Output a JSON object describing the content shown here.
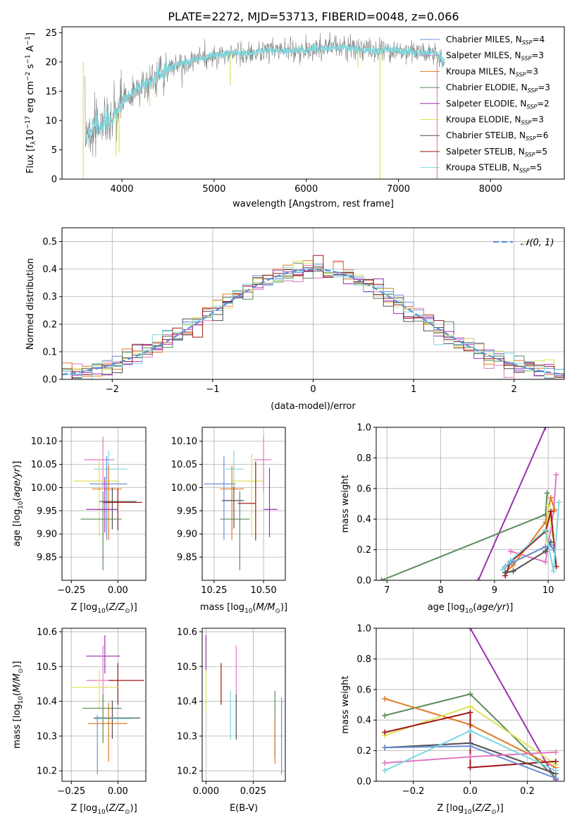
{
  "figure": {
    "title": "PLATE=2272, MJD=53713, FIBERID=0048, z=0.066"
  },
  "colors": {
    "chabrier_miles": "#6a8fd8",
    "salpeter_miles": "#e377c2",
    "kroupa_miles": "#e07b25",
    "chabrier_elodie": "#5a8a5a",
    "salpeter_elodie": "#9b30b0",
    "kroupa_elodie": "#dde35a",
    "chabrier_stelib": "#505050",
    "salpeter_stelib": "#a01818",
    "kroupa_stelib": "#7dd8e0",
    "data": "#808080",
    "normal": "#5b8fd8",
    "grid": "#b0b0b0"
  },
  "chart_data": [
    {
      "type": "line",
      "id": "spectrum",
      "xlabel": "wavelength [Angstrom, rest frame]",
      "ylabel": "Flux [f",
      "xlim": [
        3350,
        8800
      ],
      "ylim": [
        0,
        26
      ],
      "xticks": [
        4000,
        5000,
        6000,
        7000,
        8000
      ],
      "yticks": [
        0,
        5,
        10,
        15,
        20,
        25
      ],
      "grid": false,
      "legend": "top-right",
      "series_labels": [
        {
          "imf": "Chabrier",
          "lib": "MILES",
          "n": "4",
          "color_key": "chabrier_miles"
        },
        {
          "imf": "Salpeter",
          "lib": "MILES",
          "n": "3",
          "color_key": "salpeter_miles"
        },
        {
          "imf": "Kroupa",
          "lib": "MILES",
          "n": "3",
          "color_key": "kroupa_miles"
        },
        {
          "imf": "Chabrier",
          "lib": "ELODIE",
          "n": "3",
          "color_key": "chabrier_elodie"
        },
        {
          "imf": "Salpeter",
          "lib": "ELODIE",
          "n": "2",
          "color_key": "salpeter_elodie"
        },
        {
          "imf": "Kroupa",
          "lib": "ELODIE",
          "n": "3",
          "color_key": "kroupa_elodie"
        },
        {
          "imf": "Chabrier",
          "lib": "STELIB",
          "n": "6",
          "color_key": "chabrier_stelib"
        },
        {
          "imf": "Salpeter",
          "lib": "STELIB",
          "n": "5",
          "color_key": "salpeter_stelib"
        },
        {
          "imf": "Kroupa",
          "lib": "STELIB",
          "n": "5",
          "color_key": "kroupa_stelib"
        }
      ],
      "continuum": [
        [
          3600,
          7.5
        ],
        [
          3700,
          9
        ],
        [
          3800,
          9.5
        ],
        [
          3900,
          10
        ],
        [
          4000,
          13
        ],
        [
          4100,
          14.5
        ],
        [
          4200,
          16
        ],
        [
          4300,
          16.5
        ],
        [
          4400,
          18
        ],
        [
          4500,
          19
        ],
        [
          4600,
          19.5
        ],
        [
          4800,
          20.5
        ],
        [
          5000,
          21
        ],
        [
          5200,
          21.5
        ],
        [
          5400,
          21.5
        ],
        [
          5600,
          22
        ],
        [
          5800,
          22
        ],
        [
          6000,
          22
        ],
        [
          6200,
          22.5
        ],
        [
          6400,
          22.5
        ],
        [
          6600,
          22
        ],
        [
          6800,
          22
        ],
        [
          7000,
          22
        ],
        [
          7200,
          21.5
        ],
        [
          7400,
          21.5
        ],
        [
          7500,
          20
        ]
      ],
      "features": [
        {
          "x": 3580,
          "y": 0.2
        },
        {
          "x": 3935,
          "y": 4
        },
        {
          "x": 3970,
          "y": 4.5
        },
        {
          "x": 4300,
          "y": 12.5
        },
        {
          "x": 5175,
          "y": 16
        },
        {
          "x": 6560,
          "y": 19
        },
        {
          "x": 6800,
          "y": 0
        },
        {
          "x": 7420,
          "y": 0
        }
      ]
    },
    {
      "type": "bar",
      "id": "residual-histogram",
      "xlabel": "(data-model)/error",
      "ylabel": "Normed distribution",
      "xlim": [
        -2.5,
        2.5
      ],
      "ylim": [
        0,
        0.55
      ],
      "xticks": [
        -2,
        -1,
        0,
        1,
        2
      ],
      "yticks": [
        0.0,
        0.1,
        0.2,
        0.3,
        0.4,
        0.5
      ],
      "grid": true,
      "legend": "top-right",
      "legend_label": "𝒩(0, 1)",
      "bin_width": 0.1,
      "normal": {
        "mean": 0,
        "sigma": 1
      }
    },
    {
      "type": "scatter",
      "id": "age-vs-metallicity",
      "xlabel": "Z [log",
      "ylabel": "age  [log",
      "xlim": [
        -0.3,
        0.15
      ],
      "ylim": [
        9.8,
        10.13
      ],
      "xticks": [
        -0.25,
        0.0
      ],
      "yticks": [
        9.85,
        9.9,
        9.95,
        10.0,
        10.05,
        10.1
      ],
      "grid": true,
      "points": [
        {
          "c": "salpeter_miles",
          "x": -0.08,
          "y": 10.06,
          "xerr": [
            0.1,
            0.06
          ],
          "yerr": [
            0.06,
            0.05
          ]
        },
        {
          "c": "kroupa_stelib",
          "x": -0.05,
          "y": 10.04,
          "xerr": [
            0.08,
            0.1
          ],
          "yerr": [
            0.05,
            0.04
          ]
        },
        {
          "c": "chabrier_miles",
          "x": -0.06,
          "y": 10.008,
          "xerr": [
            0.09,
            0.11
          ],
          "yerr": [
            0.12,
            0.06
          ]
        },
        {
          "c": "kroupa_elodie",
          "x": -0.1,
          "y": 10.014,
          "xerr": [
            0.14,
            0.11
          ],
          "yerr": [
            0.12,
            0.05
          ]
        },
        {
          "c": "kroupa_miles",
          "x": -0.05,
          "y": 9.997,
          "xerr": [
            0.09,
            0.07
          ],
          "yerr": [
            0.11,
            0.05
          ]
        },
        {
          "c": "chabrier_stelib",
          "x": -0.03,
          "y": 9.97,
          "xerr": [
            0.07,
            0.13
          ],
          "yerr": [
            0.06,
            0.03
          ]
        },
        {
          "c": "salpeter_stelib",
          "x": 0.0,
          "y": 9.968,
          "xerr": [
            0.08,
            0.13
          ],
          "yerr": [
            0.06,
            0.03
          ]
        },
        {
          "c": "salpeter_elodie",
          "x": -0.07,
          "y": 9.953,
          "xerr": [
            0.1,
            0.07
          ],
          "yerr": [
            0.05,
            0.07
          ]
        },
        {
          "c": "chabrier_elodie",
          "x": -0.08,
          "y": 9.932,
          "xerr": [
            0.12,
            0.1
          ],
          "yerr": [
            0.11,
            0.06
          ]
        }
      ]
    },
    {
      "type": "scatter",
      "id": "age-vs-mass",
      "xlabel": "mass [log",
      "ylabel": "",
      "xlim": [
        10.19,
        10.61
      ],
      "ylim": [
        9.8,
        10.13
      ],
      "xticks": [
        10.25,
        10.5
      ],
      "yticks": [
        9.85,
        9.9,
        9.95,
        10.0,
        10.05,
        10.1
      ],
      "grid": true,
      "points": [
        {
          "c": "salpeter_miles",
          "x": 10.5,
          "y": 10.06,
          "xerr": [
            0.05,
            0.04
          ],
          "yerr": [
            0.07,
            0.05
          ]
        },
        {
          "c": "kroupa_stelib",
          "x": 10.35,
          "y": 10.04,
          "xerr": [
            0.04,
            0.05
          ],
          "yerr": [
            0.05,
            0.04
          ]
        },
        {
          "c": "chabrier_miles",
          "x": 10.3,
          "y": 10.008,
          "xerr": [
            0.1,
            0.06
          ],
          "yerr": [
            0.12,
            0.06
          ]
        },
        {
          "c": "kroupa_elodie",
          "x": 10.44,
          "y": 10.014,
          "xerr": [
            0.1,
            0.06
          ],
          "yerr": [
            0.12,
            0.06
          ]
        },
        {
          "c": "kroupa_miles",
          "x": 10.34,
          "y": 9.997,
          "xerr": [
            0.06,
            0.06
          ],
          "yerr": [
            0.11,
            0.05
          ]
        },
        {
          "c": "chabrier_stelib",
          "x": 10.35,
          "y": 9.972,
          "xerr": [
            0.06,
            0.05
          ],
          "yerr": [
            0.06,
            0.03
          ]
        },
        {
          "c": "salpeter_stelib",
          "x": 10.46,
          "y": 9.966,
          "xerr": [
            0.09,
            0.0
          ],
          "yerr": [
            0.08,
            0.09
          ]
        },
        {
          "c": "salpeter_elodie",
          "x": 10.53,
          "y": 9.953,
          "xerr": [
            0.03,
            0.04
          ],
          "yerr": [
            0.06,
            0.09
          ]
        },
        {
          "c": "chabrier_elodie",
          "x": 10.38,
          "y": 9.932,
          "xerr": [
            0.1,
            0.05
          ],
          "yerr": [
            0.11,
            0.06
          ]
        }
      ]
    },
    {
      "type": "line",
      "id": "weight-vs-age",
      "xlabel": "age  [log",
      "ylabel": "mass weight",
      "xlim": [
        6.8,
        10.3
      ],
      "ylim": [
        0,
        1
      ],
      "xticks": [
        7,
        8,
        9,
        10
      ],
      "yticks": [
        0.0,
        0.2,
        0.4,
        0.6,
        0.8,
        1.0
      ],
      "grid": true,
      "series": [
        {
          "c": "salpeter_elodie",
          "x": [
            8.7,
            9.95
          ],
          "y": [
            0.0,
            1.0
          ]
        },
        {
          "c": "chabrier_elodie",
          "x": [
            6.9,
            9.95,
            9.98
          ],
          "y": [
            0.0,
            0.43,
            0.57
          ]
        },
        {
          "c": "salpeter_miles",
          "x": [
            9.3,
            9.95,
            10.1,
            10.15
          ],
          "y": [
            0.19,
            0.12,
            0.45,
            0.69
          ]
        },
        {
          "c": "kroupa_miles",
          "x": [
            9.2,
            9.35,
            9.95,
            10.05,
            10.12
          ],
          "y": [
            0.05,
            0.1,
            0.38,
            0.54,
            0.46
          ]
        },
        {
          "c": "kroupa_elodie",
          "x": [
            9.25,
            9.95,
            10.0,
            10.08
          ],
          "y": [
            0.1,
            0.22,
            0.49,
            0.3
          ]
        },
        {
          "c": "salpeter_stelib",
          "x": [
            9.2,
            9.3,
            9.95,
            10.05,
            10.15
          ],
          "y": [
            0.03,
            0.12,
            0.32,
            0.45,
            0.09
          ]
        },
        {
          "c": "chabrier_stelib",
          "x": [
            9.2,
            9.35,
            9.95,
            10.05
          ],
          "y": [
            0.05,
            0.06,
            0.19,
            0.25
          ]
        },
        {
          "c": "chabrier_miles",
          "x": [
            9.2,
            9.35,
            9.95,
            10.05,
            10.1
          ],
          "y": [
            0.09,
            0.12,
            0.22,
            0.23,
            0.2
          ]
        },
        {
          "c": "kroupa_stelib",
          "x": [
            9.15,
            9.3,
            9.95,
            10.1,
            10.2
          ],
          "y": [
            0.07,
            0.13,
            0.33,
            0.06,
            0.51
          ]
        }
      ]
    },
    {
      "type": "scatter",
      "id": "mass-vs-metallicity",
      "xlabel": "Z [log",
      "ylabel": "mass [log",
      "xlim": [
        -0.3,
        0.15
      ],
      "ylim": [
        10.17,
        10.61
      ],
      "xticks": [
        -0.25,
        0.0
      ],
      "yticks": [
        10.2,
        10.3,
        10.4,
        10.5,
        10.6
      ],
      "grid": true,
      "points": [
        {
          "c": "salpeter_elodie",
          "x": -0.07,
          "y": 10.53,
          "xerr": [
            0.1,
            0.08
          ],
          "yerr": [
            0.05,
            0.06
          ]
        },
        {
          "c": "salpeter_miles",
          "x": -0.08,
          "y": 10.46,
          "xerr": [
            0.09,
            0.06
          ],
          "yerr": [
            0.06,
            0.1
          ]
        },
        {
          "c": "salpeter_stelib",
          "x": 0.0,
          "y": 10.46,
          "xerr": [
            0.05,
            0.14
          ],
          "yerr": [
            0.07,
            0.05
          ]
        },
        {
          "c": "kroupa_elodie",
          "x": -0.1,
          "y": 10.44,
          "xerr": [
            0.15,
            0.1
          ],
          "yerr": [
            0.06,
            0.05
          ]
        },
        {
          "c": "chabrier_elodie",
          "x": -0.08,
          "y": 10.38,
          "xerr": [
            0.11,
            0.1
          ],
          "yerr": [
            0.1,
            0.04
          ]
        },
        {
          "c": "chabrier_stelib",
          "x": -0.03,
          "y": 10.352,
          "xerr": [
            0.1,
            0.15
          ],
          "yerr": [
            0.06,
            0.05
          ]
        },
        {
          "c": "kroupa_stelib",
          "x": -0.05,
          "y": 10.35,
          "xerr": [
            0.08,
            0.12
          ],
          "yerr": [
            0.06,
            0.04
          ]
        },
        {
          "c": "kroupa_miles",
          "x": -0.05,
          "y": 10.336,
          "xerr": [
            0.11,
            0.1
          ],
          "yerr": [
            0.11,
            0.06
          ]
        },
        {
          "c": "chabrier_miles",
          "x": -0.11,
          "y": 10.3,
          "xerr": [
            0.0,
            0.0
          ],
          "yerr": [
            0.11,
            0.06
          ]
        }
      ]
    },
    {
      "type": "scatter",
      "id": "mass-vs-ebv",
      "xlabel": "E(B-V)",
      "ylabel": "",
      "xlim": [
        -0.002,
        0.042
      ],
      "ylim": [
        10.17,
        10.61
      ],
      "xticks": [
        0.0,
        0.025
      ],
      "yticks": [
        10.2,
        10.3,
        10.4,
        10.5,
        10.6
      ],
      "grid": true,
      "points": [
        {
          "c": "salpeter_elodie",
          "x": 0.0,
          "y": 10.53,
          "xerr": [
            0,
            0
          ],
          "yerr": [
            0.04,
            0.06
          ]
        },
        {
          "c": "kroupa_elodie",
          "x": 0.0,
          "y": 10.44,
          "xerr": [
            0,
            0
          ],
          "yerr": [
            0.07,
            0.05
          ]
        },
        {
          "c": "salpeter_stelib",
          "x": 0.008,
          "y": 10.45,
          "xerr": [
            0,
            0
          ],
          "yerr": [
            0.06,
            0.06
          ]
        },
        {
          "c": "kroupa_stelib",
          "x": 0.013,
          "y": 10.36,
          "xerr": [
            0,
            0
          ],
          "yerr": [
            0.07,
            0.07
          ]
        },
        {
          "c": "salpeter_miles",
          "x": 0.016,
          "y": 10.48,
          "xerr": [
            0,
            0
          ],
          "yerr": [
            0.06,
            0.08
          ]
        },
        {
          "c": "chabrier_stelib",
          "x": 0.016,
          "y": 10.35,
          "xerr": [
            0,
            0
          ],
          "yerr": [
            0.06,
            0.07
          ]
        },
        {
          "c": "chabrier_elodie",
          "x": 0.0365,
          "y": 10.35,
          "xerr": [
            0,
            0
          ],
          "yerr": [
            0.11,
            0.08
          ]
        },
        {
          "c": "kroupa_miles",
          "x": 0.0365,
          "y": 10.3,
          "xerr": [
            0,
            0
          ],
          "yerr": [
            0.08,
            0.05
          ]
        },
        {
          "c": "chabrier_miles",
          "x": 0.04,
          "y": 10.3,
          "xerr": [
            0,
            0
          ],
          "yerr": [
            0.11,
            0.11
          ]
        }
      ]
    },
    {
      "type": "line",
      "id": "weight-vs-metallicity",
      "xlabel": "Z [log",
      "ylabel": "mass weight",
      "xlim": [
        -0.33,
        0.33
      ],
      "ylim": [
        0,
        1
      ],
      "xticks": [
        -0.2,
        0.0,
        0.2
      ],
      "yticks": [
        0.0,
        0.2,
        0.4,
        0.6,
        0.8,
        1.0
      ],
      "grid": true,
      "series": [
        {
          "c": "salpeter_elodie",
          "x": [
            0.0,
            0.3
          ],
          "y": [
            1.0,
            0.01
          ]
        },
        {
          "c": "chabrier_elodie",
          "x": [
            -0.3,
            0.0,
            0.3
          ],
          "y": [
            0.43,
            0.57,
            0.02
          ]
        },
        {
          "c": "kroupa_miles",
          "x": [
            -0.3,
            0.0,
            0.3
          ],
          "y": [
            0.54,
            0.37,
            0.09
          ]
        },
        {
          "c": "kroupa_elodie",
          "x": [
            -0.3,
            0.0,
            0.3
          ],
          "y": [
            0.3,
            0.49,
            0.11
          ]
        },
        {
          "c": "salpeter_stelib",
          "x": [
            -0.3,
            0.0,
            0.0,
            0.3
          ],
          "y": [
            0.32,
            0.45,
            0.09,
            0.13
          ]
        },
        {
          "c": "chabrier_stelib",
          "x": [
            -0.3,
            0.0,
            0.3
          ],
          "y": [
            0.22,
            0.25,
            0.05
          ]
        },
        {
          "c": "chabrier_miles",
          "x": [
            -0.3,
            0.0,
            0.3
          ],
          "y": [
            0.22,
            0.23,
            0.02
          ]
        },
        {
          "c": "salpeter_miles",
          "x": [
            -0.3,
            0.0,
            0.3
          ],
          "y": [
            0.12,
            0.16,
            0.19
          ]
        },
        {
          "c": "kroupa_stelib",
          "x": [
            -0.3,
            0.0,
            0.3
          ],
          "y": [
            0.07,
            0.33,
            0.07
          ]
        }
      ]
    }
  ]
}
